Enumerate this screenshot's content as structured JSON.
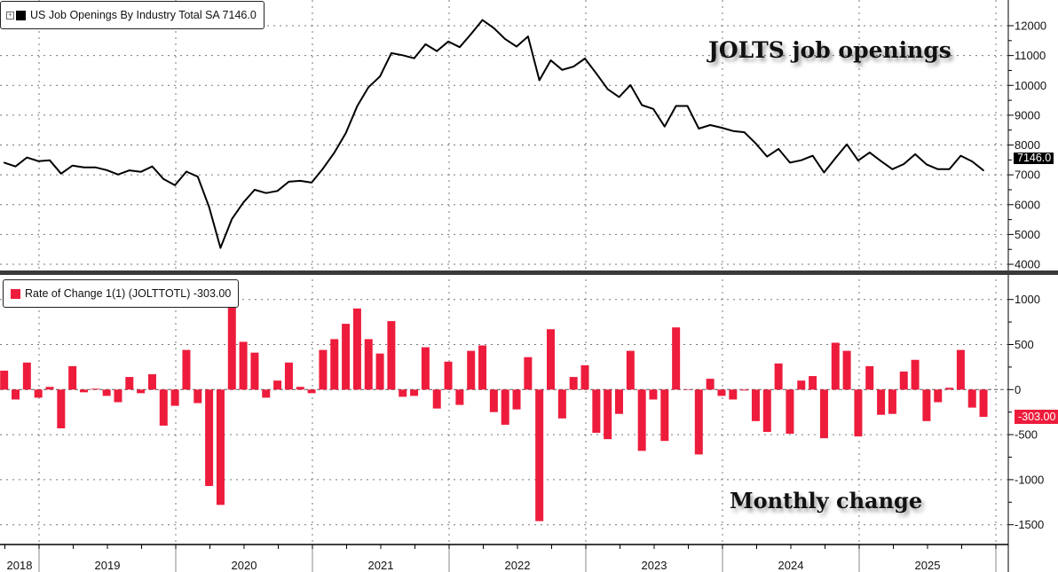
{
  "legends": {
    "top": {
      "label": "US Job Openings By Industry Total SA 7146.0",
      "expand_icon": "plus-box-icon",
      "color": "#000000"
    },
    "bottom": {
      "label": "Rate of Change 1(1) (JOLTTOTL) -303.00",
      "color": "#ee1c3c"
    }
  },
  "annotations": {
    "top": "JOLTS job openings",
    "bottom": "Monthly change"
  },
  "chart_data": [
    {
      "type": "line",
      "series_name": "US Job Openings By Industry Total SA",
      "color": "#000000",
      "last_value_label": "7146.0",
      "ylim": [
        4000,
        12000
      ],
      "y_ticks": [
        "4000",
        "5000",
        "6000",
        "7000",
        "8000",
        "9000",
        "10000",
        "11000",
        "12000"
      ],
      "y_axis_position": "right",
      "grid": true,
      "x_tick_labels": [
        "2018",
        "2019",
        "2020",
        "2021",
        "2022",
        "2023",
        "2024",
        "2025"
      ],
      "x": [
        "2018-09",
        "2018-10",
        "2018-11",
        "2018-12",
        "2019-01",
        "2019-02",
        "2019-03",
        "2019-04",
        "2019-05",
        "2019-06",
        "2019-07",
        "2019-08",
        "2019-09",
        "2019-10",
        "2019-11",
        "2019-12",
        "2020-01",
        "2020-02",
        "2020-03",
        "2020-04",
        "2020-05",
        "2020-06",
        "2020-07",
        "2020-08",
        "2020-09",
        "2020-10",
        "2020-11",
        "2020-12",
        "2021-01",
        "2021-02",
        "2021-03",
        "2021-04",
        "2021-05",
        "2021-06",
        "2021-07",
        "2021-08",
        "2021-09",
        "2021-10",
        "2021-11",
        "2021-12",
        "2022-01",
        "2022-02",
        "2022-03",
        "2022-04",
        "2022-05",
        "2022-06",
        "2022-07",
        "2022-08",
        "2022-09",
        "2022-10",
        "2022-11",
        "2022-12",
        "2023-01",
        "2023-02",
        "2023-03",
        "2023-04",
        "2023-05",
        "2023-06",
        "2023-07",
        "2023-08",
        "2023-09",
        "2023-10",
        "2023-11",
        "2023-12",
        "2024-01",
        "2024-02",
        "2024-03",
        "2024-04",
        "2024-05",
        "2024-06",
        "2024-07",
        "2024-08",
        "2024-09",
        "2024-10",
        "2024-11",
        "2024-12",
        "2025-01",
        "2025-02",
        "2025-03",
        "2025-04",
        "2025-05",
        "2025-06",
        "2025-07",
        "2025-08",
        "2025-09",
        "2025-10",
        "2025-11"
      ],
      "values": [
        7410,
        7280,
        7580,
        7460,
        7490,
        7040,
        7310,
        7250,
        7250,
        7160,
        7010,
        7150,
        7100,
        7280,
        6860,
        6650,
        7110,
        6940,
        5920,
        4550,
        5520,
        6070,
        6500,
        6390,
        6460,
        6770,
        6800,
        6740,
        7210,
        7750,
        8400,
        9300,
        9940,
        10300,
        11080,
        11010,
        10910,
        11380,
        11150,
        11470,
        11280,
        11720,
        12190,
        11920,
        11550,
        11300,
        11640,
        10170,
        10840,
        10520,
        10630,
        10900,
        10400,
        9870,
        9610,
        10010,
        9340,
        9210,
        8620,
        9310,
        9310,
        8550,
        8670,
        8580,
        8470,
        8430,
        8050,
        7610,
        7870,
        7410,
        7490,
        7640,
        7080,
        7560,
        8020,
        7480,
        7750,
        7460,
        7190,
        7360,
        7690,
        7350,
        7190,
        7190,
        7640,
        7450,
        7146
      ]
    },
    {
      "type": "bar",
      "series_name": "Rate of Change 1(1) (JOLTTOTL)",
      "color": "#ee1c3c",
      "last_value_label": "-303.00",
      "ylim": [
        -1500,
        1000
      ],
      "y_ticks": [
        "-1500",
        "-1000",
        "-500",
        "0",
        "500",
        "1000"
      ],
      "y_axis_position": "right",
      "grid": true,
      "values": [
        210,
        -110,
        300,
        -90,
        30,
        -430,
        260,
        -30,
        10,
        -70,
        -140,
        140,
        -40,
        170,
        -400,
        -180,
        440,
        -150,
        -1070,
        -1280,
        970,
        530,
        410,
        -90,
        100,
        300,
        30,
        -40,
        440,
        560,
        730,
        900,
        560,
        400,
        760,
        -80,
        -70,
        470,
        -210,
        310,
        -170,
        430,
        490,
        -250,
        -390,
        -220,
        360,
        -1460,
        670,
        -320,
        140,
        270,
        -480,
        -550,
        -270,
        430,
        -680,
        -110,
        -570,
        690,
        0,
        -720,
        120,
        -70,
        -110,
        -10,
        -350,
        -470,
        290,
        -490,
        100,
        150,
        -540,
        520,
        430,
        -520,
        260,
        -280,
        -270,
        200,
        330,
        -350,
        -140,
        20,
        440,
        -200,
        -303
      ]
    }
  ]
}
